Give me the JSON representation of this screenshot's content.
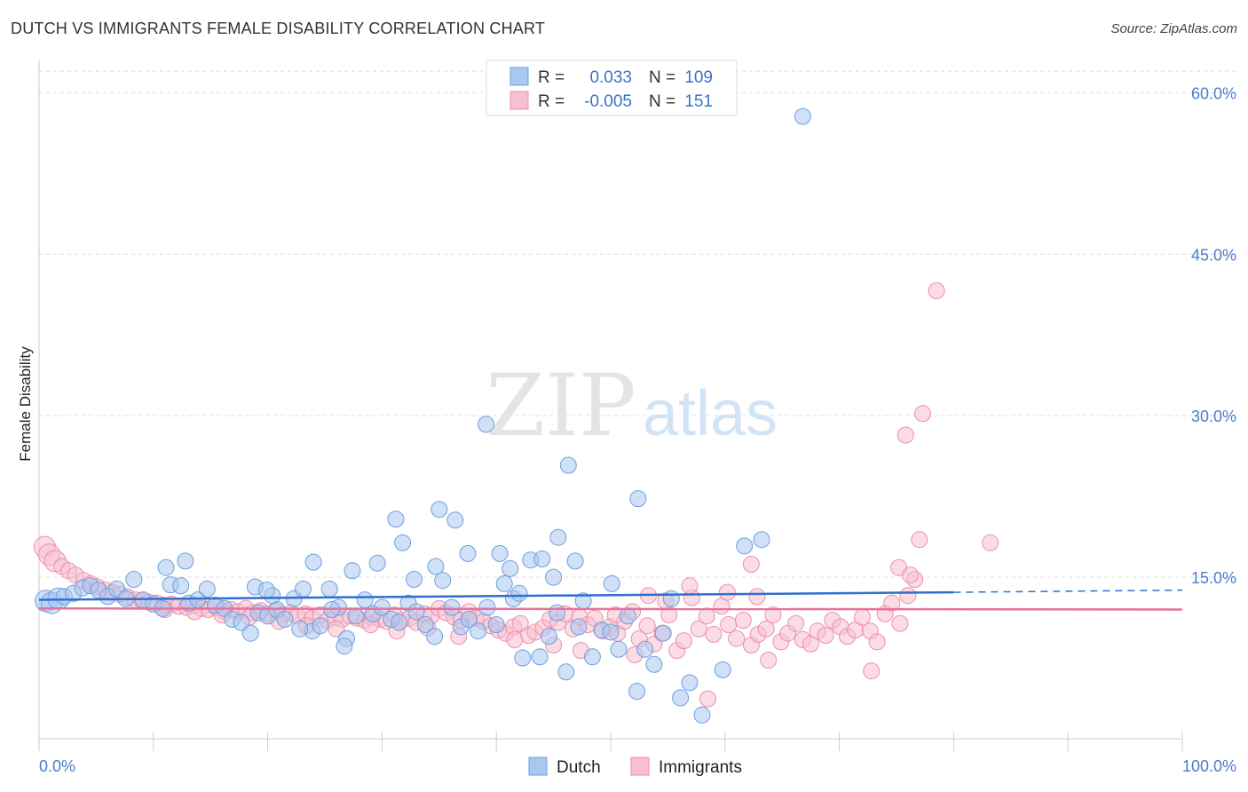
{
  "header": {
    "title": "DUTCH VS IMMIGRANTS FEMALE DISABILITY CORRELATION CHART",
    "source": "Source: ZipAtlas.com"
  },
  "watermark": {
    "zip": "ZIP",
    "atlas": "atlas"
  },
  "chart_data": {
    "type": "scatter",
    "title": "DUTCH VS IMMIGRANTS FEMALE DISABILITY CORRELATION CHART",
    "xlabel": "",
    "ylabel": "Female Disability",
    "xlim": [
      0,
      100
    ],
    "ylim": [
      0,
      63
    ],
    "y_ticks": [
      15,
      30,
      45,
      60
    ],
    "y_tick_labels": [
      "15.0%",
      "30.0%",
      "45.0%",
      "60.0%"
    ],
    "x_tick_labels": [
      "0.0%",
      "100.0%"
    ],
    "grid": true,
    "legend_position": "top-center",
    "stats": [
      {
        "r_label": "R =",
        "r_value": "0.033",
        "n_label": "N =",
        "n_value": "109"
      },
      {
        "r_label": "R =",
        "r_value": "-0.005",
        "n_label": "N =",
        "n_value": "151"
      }
    ],
    "colors": {
      "dutch_fill": "#a9c7f0",
      "dutch_stroke": "#6f9fde",
      "dutch_line": "#2f6fd0",
      "imm_fill": "#f7bfd0",
      "imm_stroke": "#ec8fac",
      "imm_line": "#e8709a"
    },
    "series": [
      {
        "name": "Dutch",
        "trend": {
          "x0": 0,
          "y0": 12.9,
          "x1": 80,
          "y1": 13.6,
          "dash_to": 100,
          "dash_y": 13.8
        },
        "points": [
          [
            0.6,
            12.8
          ],
          [
            1.1,
            12.6
          ],
          [
            1.7,
            13.0
          ],
          [
            2.2,
            13.2
          ],
          [
            3.0,
            13.5
          ],
          [
            3.8,
            14.0
          ],
          [
            4.5,
            14.2
          ],
          [
            5.2,
            13.8
          ],
          [
            6.0,
            13.2
          ],
          [
            6.8,
            13.9
          ],
          [
            7.6,
            13.0
          ],
          [
            8.3,
            14.8
          ],
          [
            9.1,
            12.9
          ],
          [
            10.0,
            12.5
          ],
          [
            10.8,
            12.1
          ],
          [
            11.5,
            14.3
          ],
          [
            12.4,
            14.2
          ],
          [
            13.1,
            12.6
          ],
          [
            13.9,
            12.9
          ],
          [
            14.7,
            13.9
          ],
          [
            15.4,
            12.4
          ],
          [
            16.2,
            12.1
          ],
          [
            16.9,
            11.1
          ],
          [
            17.7,
            10.8
          ],
          [
            18.5,
            9.8
          ],
          [
            19.2,
            11.7
          ],
          [
            20.0,
            11.4
          ],
          [
            20.8,
            12.0
          ],
          [
            21.5,
            11.1
          ],
          [
            22.3,
            13.0
          ],
          [
            23.1,
            13.9
          ],
          [
            23.9,
            10.0
          ],
          [
            24.6,
            10.5
          ],
          [
            25.4,
            13.9
          ],
          [
            26.2,
            12.2
          ],
          [
            26.9,
            9.3
          ],
          [
            27.7,
            11.4
          ],
          [
            28.5,
            12.9
          ],
          [
            29.2,
            11.6
          ],
          [
            30.0,
            12.2
          ],
          [
            30.8,
            11.1
          ],
          [
            31.5,
            10.8
          ],
          [
            32.3,
            12.6
          ],
          [
            33.0,
            11.8
          ],
          [
            33.8,
            10.6
          ],
          [
            34.6,
            9.5
          ],
          [
            35.3,
            14.7
          ],
          [
            36.1,
            12.2
          ],
          [
            36.9,
            10.4
          ],
          [
            37.6,
            11.1
          ],
          [
            38.4,
            10.0
          ],
          [
            39.2,
            12.2
          ],
          [
            40.0,
            10.6
          ],
          [
            40.7,
            14.4
          ],
          [
            41.5,
            13.0
          ],
          [
            42.3,
            7.5
          ],
          [
            43.0,
            16.6
          ],
          [
            43.8,
            7.6
          ],
          [
            44.6,
            9.5
          ],
          [
            45.3,
            11.7
          ],
          [
            46.1,
            6.2
          ],
          [
            46.9,
            16.5
          ],
          [
            47.6,
            12.8
          ],
          [
            48.4,
            7.6
          ],
          [
            49.2,
            10.1
          ],
          [
            50.0,
            9.9
          ],
          [
            50.7,
            8.3
          ],
          [
            51.5,
            11.4
          ],
          [
            52.3,
            4.4
          ],
          [
            53.0,
            8.3
          ],
          [
            53.8,
            6.9
          ],
          [
            54.6,
            9.8
          ],
          [
            55.3,
            13.0
          ],
          [
            56.1,
            3.8
          ],
          [
            56.9,
            5.2
          ],
          [
            58.0,
            2.2
          ],
          [
            59.8,
            6.4
          ],
          [
            61.7,
            17.9
          ],
          [
            63.2,
            18.5
          ],
          [
            35.0,
            21.3
          ],
          [
            36.4,
            20.3
          ],
          [
            46.3,
            25.4
          ],
          [
            39.1,
            29.2
          ],
          [
            66.8,
            57.8
          ],
          [
            31.2,
            20.4
          ],
          [
            31.8,
            18.2
          ],
          [
            34.7,
            16.0
          ],
          [
            27.4,
            15.6
          ],
          [
            37.5,
            17.2
          ],
          [
            40.3,
            17.2
          ],
          [
            44.0,
            16.7
          ],
          [
            45.4,
            18.7
          ],
          [
            45.0,
            15.0
          ],
          [
            50.1,
            14.4
          ],
          [
            52.4,
            22.3
          ],
          [
            41.2,
            15.8
          ],
          [
            12.8,
            16.5
          ],
          [
            11.1,
            15.9
          ],
          [
            24.0,
            16.4
          ],
          [
            18.9,
            14.1
          ],
          [
            20.4,
            13.3
          ],
          [
            25.6,
            12.0
          ],
          [
            29.6,
            16.3
          ],
          [
            32.8,
            14.8
          ],
          [
            42.0,
            13.5
          ],
          [
            22.8,
            10.2
          ],
          [
            26.7,
            8.6
          ],
          [
            19.9,
            13.8
          ],
          [
            47.2,
            10.4
          ]
        ]
      },
      {
        "name": "Immigrants",
        "trend": {
          "x0": 0,
          "y0": 12.1,
          "x1": 100,
          "y1": 12.0
        },
        "points": [
          [
            0.5,
            17.8
          ],
          [
            0.9,
            17.1
          ],
          [
            1.4,
            16.5
          ],
          [
            2.0,
            16.0
          ],
          [
            2.6,
            15.6
          ],
          [
            3.2,
            15.2
          ],
          [
            3.9,
            14.7
          ],
          [
            4.5,
            14.4
          ],
          [
            5.1,
            14.1
          ],
          [
            5.8,
            13.8
          ],
          [
            6.4,
            13.6
          ],
          [
            7.1,
            13.4
          ],
          [
            7.7,
            13.2
          ],
          [
            8.4,
            12.9
          ],
          [
            9.0,
            12.8
          ],
          [
            9.6,
            12.7
          ],
          [
            10.3,
            12.6
          ],
          [
            10.9,
            12.4
          ],
          [
            11.6,
            12.5
          ],
          [
            12.2,
            12.3
          ],
          [
            12.9,
            12.2
          ],
          [
            13.5,
            12.4
          ],
          [
            14.2,
            12.1
          ],
          [
            14.8,
            12.0
          ],
          [
            15.5,
            12.2
          ],
          [
            16.1,
            11.9
          ],
          [
            16.8,
            12.0
          ],
          [
            17.4,
            11.8
          ],
          [
            18.1,
            12.1
          ],
          [
            18.7,
            11.7
          ],
          [
            19.4,
            11.9
          ],
          [
            20.0,
            11.6
          ],
          [
            20.7,
            11.8
          ],
          [
            21.3,
            11.5
          ],
          [
            22.0,
            11.7
          ],
          [
            22.6,
            11.4
          ],
          [
            23.3,
            11.6
          ],
          [
            23.9,
            11.2
          ],
          [
            24.6,
            11.5
          ],
          [
            25.2,
            11.0
          ],
          [
            25.9,
            11.3
          ],
          [
            26.5,
            11.1
          ],
          [
            27.2,
            11.4
          ],
          [
            27.8,
            11.2
          ],
          [
            28.5,
            11.0
          ],
          [
            29.1,
            11.3
          ],
          [
            29.8,
            11.1
          ],
          [
            30.4,
            10.9
          ],
          [
            31.1,
            11.5
          ],
          [
            31.7,
            11.0
          ],
          [
            32.4,
            11.2
          ],
          [
            33.0,
            10.8
          ],
          [
            33.7,
            11.6
          ],
          [
            34.3,
            11.4
          ],
          [
            35.0,
            12.1
          ],
          [
            35.6,
            11.7
          ],
          [
            36.3,
            11.3
          ],
          [
            36.9,
            11.0
          ],
          [
            37.6,
            11.8
          ],
          [
            38.2,
            11.2
          ],
          [
            38.9,
            10.9
          ],
          [
            39.5,
            10.5
          ],
          [
            40.2,
            10.1
          ],
          [
            40.8,
            9.8
          ],
          [
            41.5,
            10.4
          ],
          [
            42.1,
            10.7
          ],
          [
            42.8,
            9.6
          ],
          [
            43.4,
            9.9
          ],
          [
            44.1,
            10.3
          ],
          [
            44.7,
            11.1
          ],
          [
            45.4,
            10.8
          ],
          [
            46.0,
            11.6
          ],
          [
            46.7,
            10.2
          ],
          [
            47.3,
            11.3
          ],
          [
            48.0,
            10.6
          ],
          [
            48.6,
            11.2
          ],
          [
            49.3,
            10.0
          ],
          [
            49.9,
            10.4
          ],
          [
            50.6,
            9.8
          ],
          [
            51.2,
            10.9
          ],
          [
            51.9,
            11.8
          ],
          [
            52.5,
            9.3
          ],
          [
            53.2,
            10.5
          ],
          [
            53.8,
            8.8
          ],
          [
            54.5,
            9.8
          ],
          [
            55.1,
            11.5
          ],
          [
            55.8,
            8.2
          ],
          [
            56.4,
            9.1
          ],
          [
            57.1,
            13.1
          ],
          [
            57.7,
            10.2
          ],
          [
            58.4,
            11.4
          ],
          [
            59.0,
            9.7
          ],
          [
            59.7,
            12.3
          ],
          [
            60.3,
            10.6
          ],
          [
            61.0,
            9.3
          ],
          [
            61.6,
            11.0
          ],
          [
            62.3,
            8.7
          ],
          [
            62.9,
            9.7
          ],
          [
            63.6,
            10.2
          ],
          [
            64.2,
            11.5
          ],
          [
            64.9,
            9.0
          ],
          [
            65.5,
            9.8
          ],
          [
            66.2,
            10.7
          ],
          [
            66.8,
            9.2
          ],
          [
            67.5,
            8.8
          ],
          [
            68.1,
            10.0
          ],
          [
            68.8,
            9.6
          ],
          [
            69.4,
            11.0
          ],
          [
            70.1,
            10.4
          ],
          [
            70.7,
            9.5
          ],
          [
            71.4,
            10.1
          ],
          [
            72.0,
            11.3
          ],
          [
            72.7,
            10.0
          ],
          [
            73.3,
            9.0
          ],
          [
            74.0,
            11.6
          ],
          [
            74.6,
            12.6
          ],
          [
            75.3,
            10.7
          ],
          [
            76.0,
            13.3
          ],
          [
            76.6,
            14.8
          ],
          [
            77.3,
            30.2
          ],
          [
            75.8,
            28.2
          ],
          [
            77.0,
            18.5
          ],
          [
            78.5,
            41.6
          ],
          [
            83.2,
            18.2
          ],
          [
            75.2,
            15.9
          ],
          [
            76.2,
            15.2
          ],
          [
            62.3,
            16.2
          ],
          [
            62.8,
            13.2
          ],
          [
            60.2,
            13.6
          ],
          [
            56.9,
            14.2
          ],
          [
            54.8,
            12.8
          ],
          [
            53.3,
            13.3
          ],
          [
            50.4,
            11.5
          ],
          [
            72.8,
            6.3
          ],
          [
            63.8,
            7.3
          ],
          [
            58.5,
            3.7
          ],
          [
            47.4,
            8.2
          ],
          [
            52.1,
            7.8
          ],
          [
            45.0,
            8.7
          ],
          [
            41.6,
            9.2
          ],
          [
            36.7,
            9.5
          ],
          [
            34.0,
            10.3
          ],
          [
            31.3,
            10.0
          ],
          [
            29.0,
            10.6
          ],
          [
            26.0,
            10.2
          ],
          [
            23.4,
            10.5
          ],
          [
            21.0,
            10.9
          ],
          [
            18.4,
            11.3
          ],
          [
            16.0,
            11.5
          ],
          [
            13.6,
            11.8
          ],
          [
            11.0,
            12.0
          ]
        ]
      }
    ]
  },
  "legend": {
    "items": [
      "Dutch",
      "Immigrants"
    ]
  }
}
